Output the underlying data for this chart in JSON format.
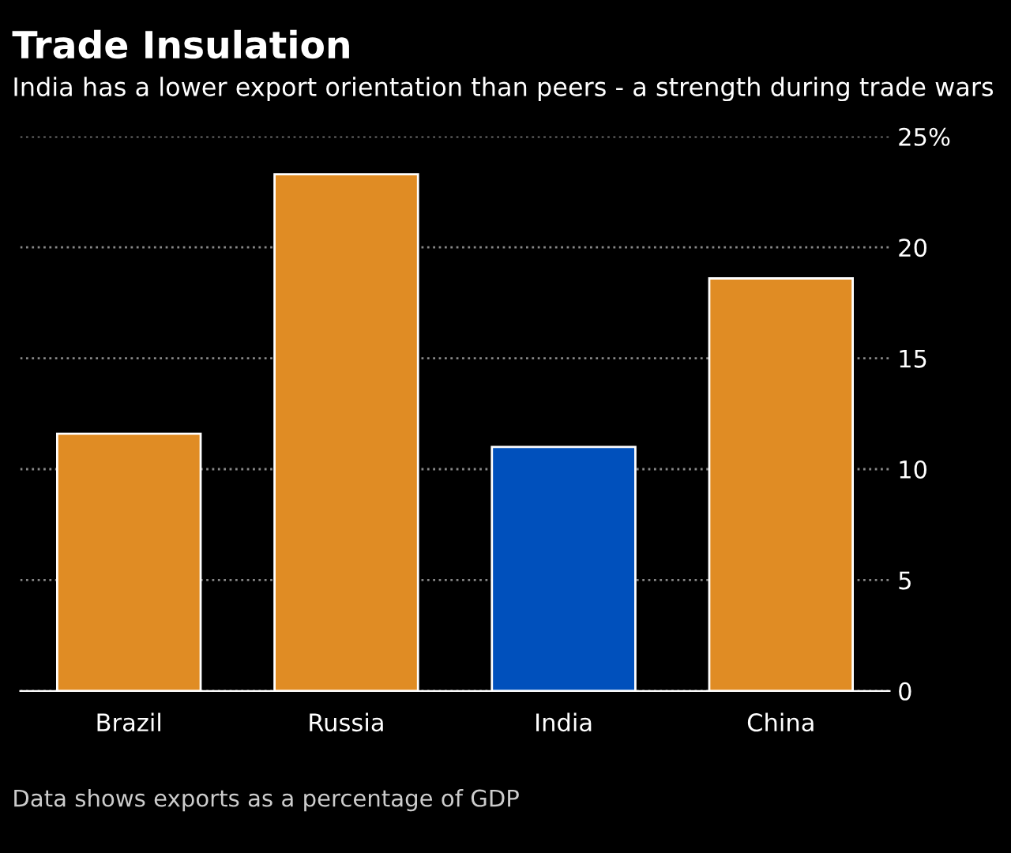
{
  "chart_data": {
    "type": "bar",
    "title": "Trade Insulation",
    "subtitle": "India has a lower export orientation than peers - a strength during trade wars",
    "categories": [
      "Brazil",
      "Russia",
      "India",
      "China"
    ],
    "values": [
      11.6,
      23.3,
      11.0,
      18.6
    ],
    "colors": [
      "#e08c24",
      "#e08c24",
      "#0050bc",
      "#e08c24"
    ],
    "ylim": [
      0,
      25
    ],
    "yticks": [
      0,
      5,
      10,
      15,
      20,
      {
        "value": 25,
        "label": "25%"
      }
    ],
    "grid": "y",
    "annotations": [
      "Data shows exports as a percentage of GDP"
    ]
  }
}
